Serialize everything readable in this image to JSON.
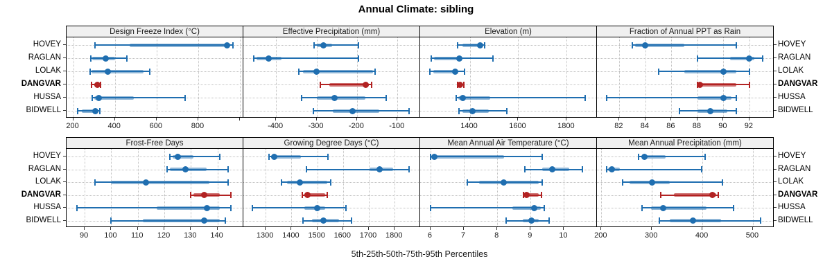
{
  "title": "Annual Climate: sibling",
  "xlabel": "5th-25th-50th-75th-95th Percentiles",
  "stations": [
    "HOVEY",
    "RAGLAN",
    "LOLAK",
    "DANGVAR",
    "HUSSA",
    "BIDWELL"
  ],
  "highlight_station": "DANGVAR",
  "colors": {
    "blue": "#1f6eb0",
    "blue_band": "rgba(31,110,176,0.5)",
    "red": "#b22222",
    "red_band": "rgba(178,34,34,0.65)",
    "grid": "#bfbfbf",
    "strip_bg": "#f0f0f0",
    "panel_border": "#000000",
    "text": "#1a1a1a"
  },
  "chart_data": {
    "type": "table",
    "subtype": "trellis-percentile-dotplot",
    "layout": "2 rows x 4 columns of panels, free x scales, shared station rows",
    "percentile_levels": [
      5,
      25,
      50,
      75,
      95
    ],
    "legend_position": "none",
    "grid": "dotted",
    "panels": [
      {
        "title": "Design Freeze Index (°C)",
        "xlim": [
          170,
          1018
        ],
        "tick_values": [
          200,
          400,
          600,
          800,
          1000
        ],
        "tick_labels": [
          "200",
          "400",
          "600",
          "800",
          ""
        ],
        "values": {
          "HOVEY": [
            305,
            470,
            938,
            952,
            965
          ],
          "RAGLAN": [
            284,
            292,
            356,
            400,
            456
          ],
          "LOLAK": [
            281,
            289,
            367,
            536,
            567
          ],
          "DANGVAR": [
            289,
            303,
            317,
            325,
            331
          ],
          "HUSSA": [
            292,
            300,
            322,
            492,
            738
          ],
          "BIDWELL": [
            223,
            243,
            306,
            322,
            329
          ]
        }
      },
      {
        "title": "Effective Precipitation (mm)",
        "xlim": [
          -480,
          -43
        ],
        "tick_values": [
          -400,
          -300,
          -200,
          -100
        ],
        "tick_labels": [
          "-400",
          "-300",
          "-200",
          "-100"
        ],
        "values": {
          "HOVEY": [
            -306,
            -300,
            -283,
            -261,
            -197
          ],
          "RAGLAN": [
            -455,
            -448,
            -418,
            -386,
            -197
          ],
          "LOLAK": [
            -343,
            -334,
            -300,
            -160,
            -155
          ],
          "DANGVAR": [
            -290,
            -269,
            -179,
            -171,
            -163
          ],
          "HUSSA": [
            -337,
            -300,
            -255,
            -180,
            -128
          ],
          "BIDWELL": [
            -308,
            -260,
            -211,
            -145,
            -72
          ]
        }
      },
      {
        "title": "Elevation (m)",
        "xlim": [
          1197,
          1926
        ],
        "tick_values": [
          1400,
          1600,
          1800
        ],
        "tick_labels": [
          "1400",
          "1600",
          "1800"
        ],
        "values": {
          "HOVEY": [
            1351,
            1369,
            1442,
            1454,
            1461
          ],
          "RAGLAN": [
            1240,
            1254,
            1356,
            1369,
            1497
          ],
          "LOLAK": [
            1237,
            1249,
            1340,
            1352,
            1378
          ],
          "DANGVAR": [
            1349,
            1354,
            1361,
            1369,
            1376
          ],
          "HUSSA": [
            1345,
            1352,
            1370,
            1483,
            1875
          ],
          "BIDWELL": [
            1357,
            1370,
            1411,
            1478,
            1552
          ]
        }
      },
      {
        "title": "Fraction of Annual PPT as Rain",
        "xlim": [
          80.3,
          93.9
        ],
        "tick_values": [
          82,
          84,
          86,
          88,
          90,
          92
        ],
        "tick_labels": [
          "82",
          "84",
          "86",
          "88",
          "90",
          "92"
        ],
        "values": {
          "HOVEY": [
            83,
            83.2,
            84,
            87,
            91
          ],
          "RAGLAN": [
            88,
            90.5,
            92,
            92.4,
            93
          ],
          "LOLAK": [
            85,
            87,
            90,
            91,
            92
          ],
          "DANGVAR": [
            88,
            88,
            88.2,
            91,
            92
          ],
          "HUSSA": [
            81,
            88,
            90,
            90.6,
            91
          ],
          "BIDWELL": [
            86.6,
            88,
            89,
            90.3,
            91
          ]
        }
      },
      {
        "title": "Frost-Free Days",
        "xlim": [
          83.3,
          149.9
        ],
        "tick_values": [
          90,
          100,
          110,
          120,
          130,
          140
        ],
        "tick_labels": [
          "90",
          "100",
          "110",
          "120",
          "130",
          "140"
        ],
        "values": {
          "HOVEY": [
            122,
            123,
            125,
            131,
            141
          ],
          "RAGLAN": [
            121,
            122,
            128,
            136,
            144
          ],
          "LOLAK": [
            94,
            100,
            113,
            137,
            144
          ],
          "DANGVAR": [
            130,
            131,
            135,
            141,
            145
          ],
          "HUSSA": [
            87,
            117,
            136,
            141,
            145
          ],
          "BIDWELL": [
            100,
            112,
            135,
            141,
            143
          ]
        }
      },
      {
        "title": "Growing Degree Days (°C)",
        "xlim": [
          1215,
          1900
        ],
        "tick_values": [
          1300,
          1400,
          1500,
          1600,
          1700,
          1800
        ],
        "tick_labels": [
          "1300",
          "1400",
          "1500",
          "1600",
          "1700",
          "1800"
        ],
        "values": {
          "HOVEY": [
            1313,
            1320,
            1333,
            1437,
            1541
          ],
          "RAGLAN": [
            1457,
            1703,
            1742,
            1795,
            1855
          ],
          "LOLAK": [
            1361,
            1382,
            1432,
            1540,
            1551
          ],
          "DANGVAR": [
            1443,
            1450,
            1461,
            1530,
            1539
          ],
          "HUSSA": [
            1248,
            1450,
            1500,
            1532,
            1610
          ],
          "BIDWELL": [
            1445,
            1479,
            1523,
            1584,
            1633
          ]
        }
      },
      {
        "title": "Mean Annual Air Temperature (°C)",
        "xlim": [
          5.7,
          11.0
        ],
        "tick_values": [
          6,
          7,
          8,
          9,
          10
        ],
        "tick_labels": [
          "6",
          "7",
          "8",
          "9",
          "10"
        ],
        "values": {
          "HOVEY": [
            6.0,
            6.08,
            6.12,
            8.2,
            9.35
          ],
          "RAGLAN": [
            8.83,
            9.35,
            9.65,
            10.15,
            10.55
          ],
          "LOLAK": [
            7.1,
            7.45,
            8.2,
            9.25,
            9.35
          ],
          "DANGVAR": [
            8.78,
            8.83,
            8.88,
            9.25,
            9.32
          ],
          "HUSSA": [
            6.0,
            8.45,
            9.1,
            9.3,
            9.4
          ],
          "BIDWELL": [
            8.27,
            8.77,
            9.03,
            9.25,
            9.55
          ]
        }
      },
      {
        "title": "Mean Annual Precipitation (mm)",
        "xlim": [
          192,
          542
        ],
        "tick_values": [
          200,
          300,
          400,
          500
        ],
        "tick_labels": [
          "200",
          "300",
          "400",
          "500"
        ],
        "values": {
          "HOVEY": [
            273,
            280,
            286,
            327,
            405
          ],
          "RAGLAN": [
            210,
            213,
            221,
            237,
            398
          ],
          "LOLAK": [
            242,
            256,
            301,
            336,
            440
          ],
          "DANGVAR": [
            318,
            343,
            420,
            427,
            432
          ],
          "HUSSA": [
            280,
            299,
            323,
            408,
            462
          ],
          "BIDWELL": [
            315,
            336,
            381,
            437,
            515
          ]
        }
      }
    ]
  }
}
